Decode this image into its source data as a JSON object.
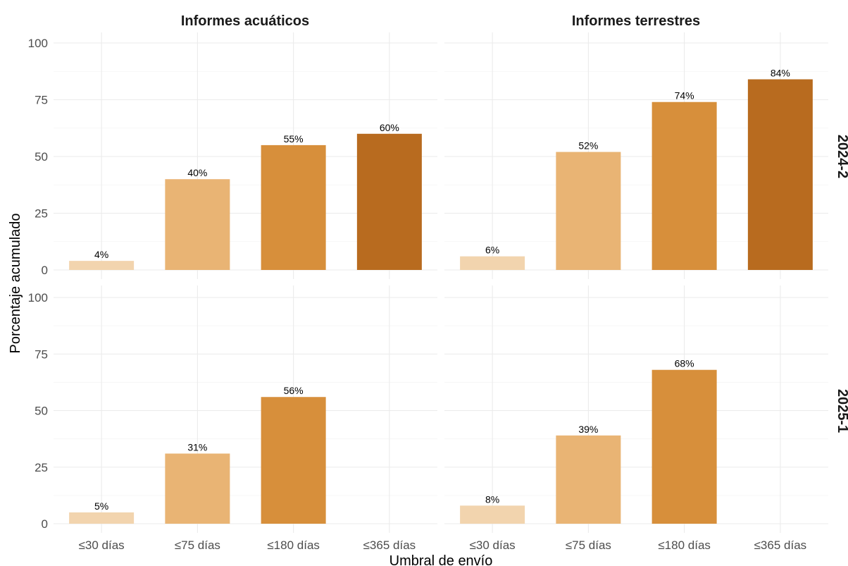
{
  "chart_data": {
    "type": "bar",
    "xlabel": "Umbral de envío",
    "ylabel": "Porcentaje acumulado",
    "ylim": [
      0,
      100
    ],
    "yticks": [
      0,
      25,
      50,
      75,
      100
    ],
    "categories": [
      "≤30 días",
      "≤75 días",
      "≤180 días",
      "≤365 días"
    ],
    "columns": [
      "Informes acuáticos",
      "Informes terrestres"
    ],
    "rows": [
      "2024-2",
      "2025-1"
    ],
    "colors": [
      "#f2d4ae",
      "#e9b474",
      "#d78f3b",
      "#b86b1f"
    ],
    "grid": true,
    "legend": "none",
    "panels": [
      {
        "column": "Informes acuáticos",
        "row": "2024-2",
        "values": [
          4,
          40,
          55,
          60
        ],
        "labels": [
          "4%",
          "40%",
          "55%",
          "60%"
        ]
      },
      {
        "column": "Informes terrestres",
        "row": "2024-2",
        "values": [
          6,
          52,
          74,
          84
        ],
        "labels": [
          "6%",
          "52%",
          "74%",
          "84%"
        ]
      },
      {
        "column": "Informes acuáticos",
        "row": "2025-1",
        "values": [
          5,
          31,
          56,
          null
        ],
        "labels": [
          "5%",
          "31%",
          "56%",
          ""
        ]
      },
      {
        "column": "Informes terrestres",
        "row": "2025-1",
        "values": [
          8,
          39,
          68,
          null
        ],
        "labels": [
          "8%",
          "39%",
          "68%",
          ""
        ]
      }
    ]
  }
}
